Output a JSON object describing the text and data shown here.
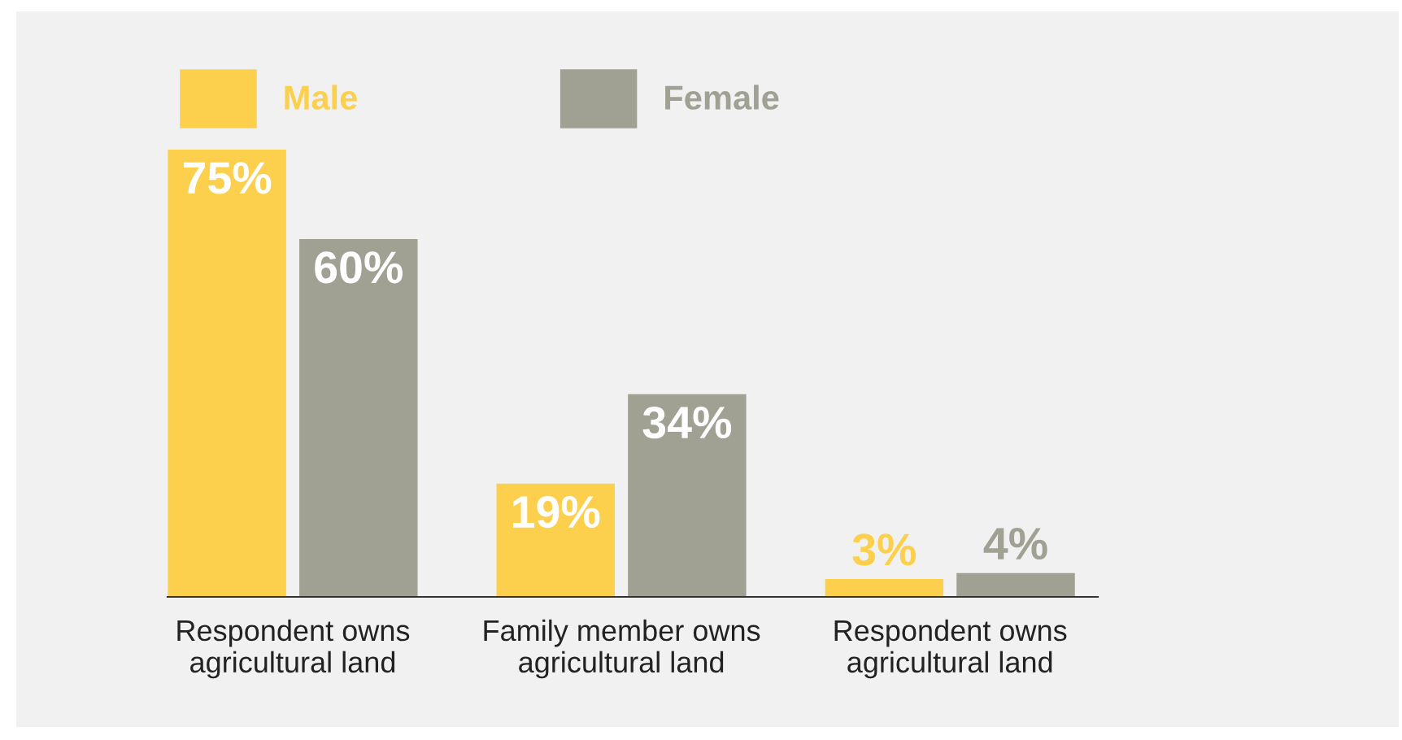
{
  "chart_data": {
    "type": "bar",
    "categories": [
      "Respondent owns agricultural land",
      "Family member owns agricultural land",
      "Respondent owns agricultural land"
    ],
    "series": [
      {
        "name": "Male",
        "color": "#fccf4d",
        "values": [
          75,
          19,
          3
        ],
        "value_labels": [
          "75%",
          "19%",
          "3%"
        ]
      },
      {
        "name": "Female",
        "color": "#a0a093",
        "values": [
          60,
          34,
          4
        ],
        "value_labels": [
          "60%",
          "34%",
          "4%"
        ]
      }
    ],
    "legend": "top left",
    "grid": false
  }
}
